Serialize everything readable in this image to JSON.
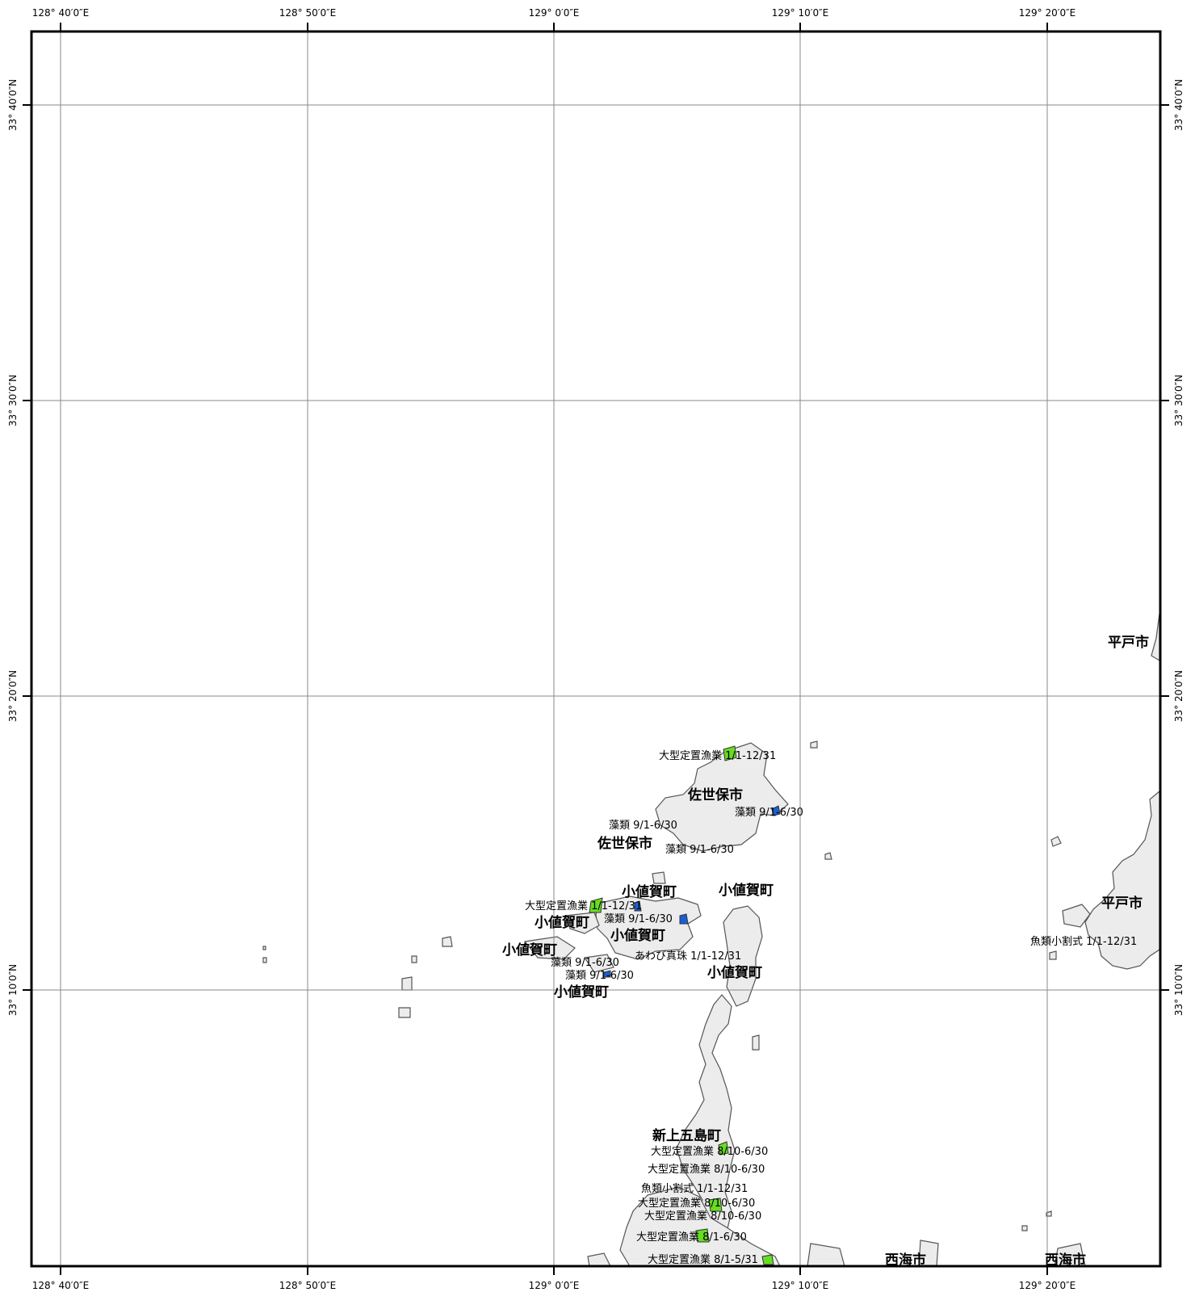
{
  "map": {
    "lon_ticks": [
      "128° 40′0″E",
      "128° 50′0″E",
      "129° 0′0″E",
      "129° 10′0″E",
      "129° 20′0″E"
    ],
    "lat_ticks": [
      "33° 40′0″N",
      "33° 30′0″N",
      "33° 20′0″N",
      "33° 10′0″N"
    ],
    "place_labels": [
      {
        "id": "hirado-1",
        "text": "平戸市"
      },
      {
        "id": "hirado-2",
        "text": "平戸市"
      },
      {
        "id": "sasebo-1",
        "text": "佐世保市"
      },
      {
        "id": "sasebo-2",
        "text": "佐世保市"
      },
      {
        "id": "ojika-1",
        "text": "小値賀町"
      },
      {
        "id": "ojika-2",
        "text": "小値賀町"
      },
      {
        "id": "ojika-3",
        "text": "小値賀町"
      },
      {
        "id": "ojika-4",
        "text": "小値賀町"
      },
      {
        "id": "ojika-5",
        "text": "小値賀町"
      },
      {
        "id": "ojika-6",
        "text": "小値賀町"
      },
      {
        "id": "ojika-7",
        "text": "小値賀町"
      },
      {
        "id": "shinkamigoto",
        "text": "新上五島町"
      },
      {
        "id": "saikai-1",
        "text": "西海市"
      },
      {
        "id": "saikai-2",
        "text": "西海市"
      }
    ],
    "fishery_labels": [
      {
        "id": "f1",
        "text": "大型定置漁業 1/1-12/31"
      },
      {
        "id": "f2",
        "text": "藻類 9/1-6/30"
      },
      {
        "id": "f3",
        "text": "藻類 9/1-6/30"
      },
      {
        "id": "f4",
        "text": "藻類 9/1-6/30"
      },
      {
        "id": "f5",
        "text": "大型定置漁業 1/1-12/31"
      },
      {
        "id": "f6",
        "text": "藻類 9/1-6/30"
      },
      {
        "id": "f7",
        "text": "あわび真珠 1/1-12/31"
      },
      {
        "id": "f8",
        "text": "藻類 9/1-6/30"
      },
      {
        "id": "f9",
        "text": "藻類 9/1-6/30"
      },
      {
        "id": "f10",
        "text": "魚類小割式 1/1-12/31"
      },
      {
        "id": "f11",
        "text": "大型定置漁業 8/10-6/30"
      },
      {
        "id": "f12",
        "text": "大型定置漁業 8/10-6/30"
      },
      {
        "id": "f13",
        "text": "魚類小割式 1/1-12/31"
      },
      {
        "id": "f14",
        "text": "大型定置漁業 8/10-6/30"
      },
      {
        "id": "f15",
        "text": "大型定置漁業 8/10-6/30"
      },
      {
        "id": "f16",
        "text": "大型定置漁業 8/1-6/30"
      },
      {
        "id": "f17",
        "text": "大型定置漁業 8/1-5/31"
      }
    ],
    "colors": {
      "land": "#ececec",
      "coast": "#555555",
      "grid": "#888888",
      "frame": "#000000",
      "fixed_net": "#66dd22",
      "algae": "#1a5fd6"
    }
  }
}
